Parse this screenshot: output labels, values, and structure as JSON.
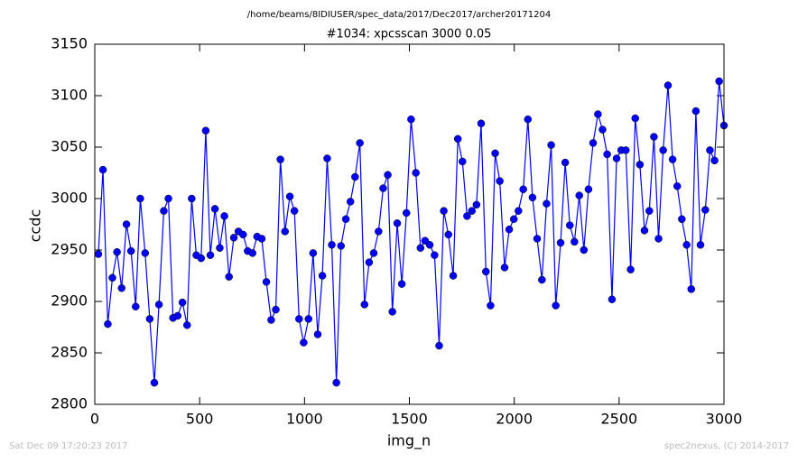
{
  "chart_data": {
    "type": "line",
    "suptitle": "/home/beams/8IDIUSER/spec_data/2017/Dec2017/archer20171204",
    "title": "#1034: xpcsscan 3000 0.05",
    "xlabel": "img_n",
    "ylabel": "ccdc",
    "footer_left": "Sat Dec 09 17:20:23 2017",
    "footer_right": "spec2nexus, (C) 2014-2017",
    "x": [
      17,
      39,
      62,
      84,
      106,
      128,
      151,
      173,
      195,
      217,
      240,
      262,
      284,
      306,
      329,
      351,
      373,
      395,
      418,
      440,
      462,
      484,
      507,
      529,
      551,
      573,
      596,
      618,
      640,
      663,
      685,
      707,
      729,
      752,
      774,
      796,
      818,
      841,
      863,
      885,
      907,
      930,
      952,
      974,
      996,
      1019,
      1041,
      1063,
      1085,
      1108,
      1130,
      1152,
      1174,
      1197,
      1219,
      1241,
      1264,
      1286,
      1308,
      1330,
      1353,
      1375,
      1397,
      1419,
      1442,
      1464,
      1486,
      1508,
      1531,
      1553,
      1575,
      1597,
      1620,
      1642,
      1664,
      1686,
      1709,
      1731,
      1753,
      1775,
      1798,
      1820,
      1842,
      1865,
      1887,
      1909,
      1931,
      1954,
      1976,
      1998,
      2020,
      2043,
      2065,
      2087,
      2109,
      2132,
      2154,
      2176,
      2198,
      2221,
      2243,
      2265,
      2287,
      2310,
      2332,
      2354,
      2376,
      2399,
      2421,
      2443,
      2466,
      2488,
      2510,
      2532,
      2555,
      2577,
      2599,
      2621,
      2644,
      2666,
      2688,
      2710,
      2733,
      2755,
      2777,
      2799,
      2822,
      2844,
      2866,
      2888,
      2911,
      2933,
      2955,
      2977,
      3000
    ],
    "series": [
      {
        "color": "#0000ff",
        "values": [
          2946,
          3028,
          2878,
          2923,
          2948,
          2913,
          2975,
          2949,
          2895,
          3000,
          2947,
          2883,
          2821,
          2897,
          2988,
          3000,
          2884,
          2886,
          2899,
          2877,
          3000,
          2945,
          2942,
          3066,
          2945,
          2990,
          2952,
          2983,
          2924,
          2962,
          2968,
          2965,
          2949,
          2947,
          2963,
          2961,
          2919,
          2882,
          2892,
          3038,
          2968,
          3002,
          2988,
          2883,
          2860,
          2883,
          2947,
          2868,
          2925,
          3039,
          2955,
          2821,
          2954,
          2980,
          2997,
          3021,
          3054,
          2897,
          2938,
          2947,
          2968,
          3010,
          3023,
          2890,
          2976,
          2917,
          2986,
          3077,
          3025,
          2952,
          2959,
          2955,
          2945,
          2857,
          2988,
          2965,
          2925,
          3058,
          3036,
          2983,
          2988,
          2994,
          3073,
          2929,
          2896,
          3044,
          3017,
          2933,
          2970,
          2980,
          2988,
          3009,
          3077,
          3001,
          2961,
          2921,
          2995,
          3052,
          2896,
          2957,
          3035,
          2974,
          2958,
          3003,
          2950,
          3009,
          3054,
          3082,
          3067,
          3043,
          2902,
          3039,
          3047,
          3047,
          2931,
          3078,
          3033,
          2969,
          2988,
          3060,
          2961,
          3047,
          3110,
          3038,
          3012,
          2980,
          2955,
          2912,
          3085,
          2955,
          2989,
          3047,
          3037,
          3114,
          3071
        ]
      }
    ],
    "xlim": [
      0,
      3000
    ],
    "xticks": [
      0,
      500,
      1000,
      1500,
      2000,
      2500,
      3000
    ],
    "ylim": [
      2800,
      3150
    ],
    "yticks": [
      2800,
      2850,
      2900,
      2950,
      3000,
      3050,
      3100,
      3150
    ]
  }
}
